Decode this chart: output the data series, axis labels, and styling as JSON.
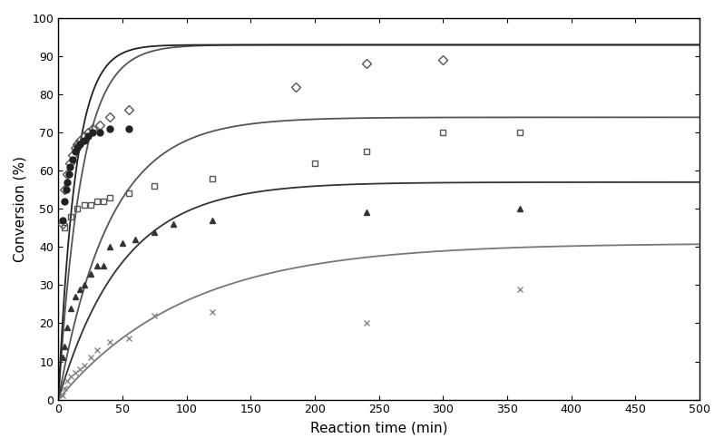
{
  "title": "",
  "xlabel": "Reaction time (min)",
  "ylabel": "Conversion (%)",
  "xlim": [
    0,
    500
  ],
  "ylim": [
    0,
    100
  ],
  "xticks": [
    0,
    50,
    100,
    150,
    200,
    250,
    300,
    350,
    400,
    450,
    500
  ],
  "yticks": [
    0,
    10,
    20,
    30,
    40,
    50,
    60,
    70,
    80,
    90,
    100
  ],
  "background_color": "#ffffff",
  "figsize": [
    7.98,
    4.94
  ],
  "dpi": 100,
  "curve_params": [
    {
      "A": 93.0,
      "k": 0.055,
      "color": "#555555"
    },
    {
      "A": 93.0,
      "k": 0.075,
      "color": "#222222"
    },
    {
      "A": 74.0,
      "k": 0.025,
      "color": "#555555"
    },
    {
      "A": 57.0,
      "k": 0.02,
      "color": "#333333"
    },
    {
      "A": 41.0,
      "k": 0.01,
      "color": "#777777"
    }
  ],
  "scatter_series": [
    {
      "x": [
        3,
        5,
        7,
        9,
        11,
        13,
        15,
        17,
        20,
        23,
        27,
        32,
        40,
        55,
        185,
        240,
        300
      ],
      "y": [
        46,
        55,
        59,
        62,
        64,
        66,
        67,
        68,
        69,
        70,
        71,
        72,
        74,
        76,
        82,
        88,
        89
      ],
      "marker": "D",
      "filled": false,
      "color": "#555555",
      "ms": 5
    },
    {
      "x": [
        3,
        5,
        6,
        7,
        8,
        9,
        11,
        13,
        15,
        17,
        20,
        23,
        27,
        32,
        40,
        55
      ],
      "y": [
        47,
        52,
        55,
        57,
        59,
        61,
        63,
        65,
        66,
        67,
        68,
        69,
        70,
        70,
        71,
        71
      ],
      "marker": "o",
      "filled": true,
      "color": "#222222",
      "ms": 5
    },
    {
      "x": [
        5,
        10,
        15,
        20,
        25,
        30,
        35,
        40,
        55,
        75,
        120,
        200,
        240,
        300,
        360
      ],
      "y": [
        45,
        48,
        50,
        51,
        51,
        52,
        52,
        53,
        54,
        56,
        58,
        62,
        65,
        70,
        70
      ],
      "marker": "s",
      "filled": false,
      "color": "#555555",
      "ms": 5
    },
    {
      "x": [
        3,
        5,
        7,
        10,
        13,
        17,
        20,
        25,
        30,
        35,
        40,
        50,
        60,
        75,
        90,
        120,
        240,
        360
      ],
      "y": [
        11,
        14,
        19,
        24,
        27,
        29,
        30,
        33,
        35,
        35,
        40,
        41,
        42,
        44,
        46,
        47,
        49,
        50
      ],
      "marker": "^",
      "filled": true,
      "color": "#333333",
      "ms": 5
    },
    {
      "x": [
        3,
        5,
        7,
        10,
        13,
        17,
        20,
        25,
        30,
        40,
        55,
        75,
        120,
        240,
        360
      ],
      "y": [
        1,
        3,
        5,
        6,
        7,
        8,
        9,
        11,
        13,
        15,
        16,
        22,
        23,
        20,
        29
      ],
      "marker": "x",
      "filled": false,
      "color": "#888888",
      "ms": 5
    }
  ]
}
